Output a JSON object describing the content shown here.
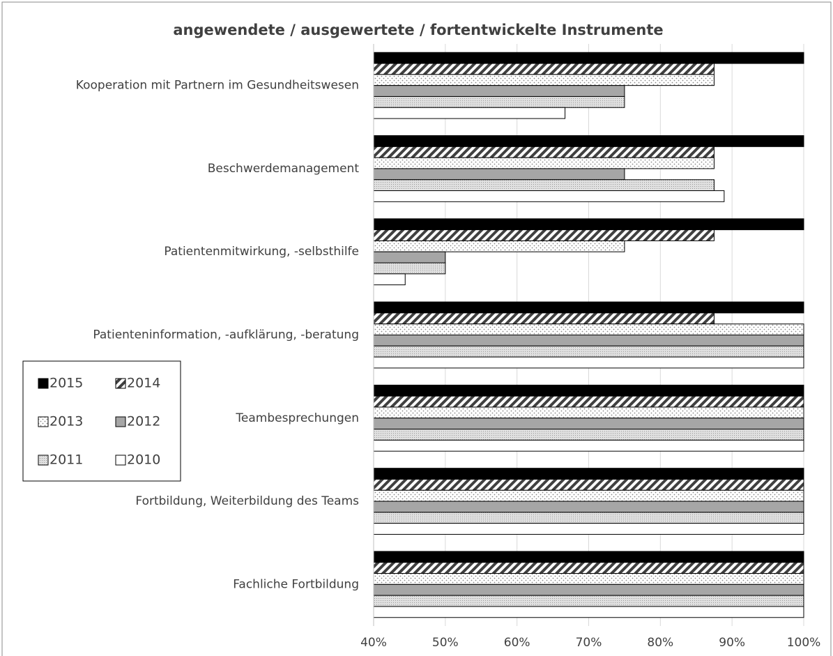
{
  "chart_data": {
    "type": "hbar",
    "title": "angewendete / ausgewertete / fortentwickelte Instrumente",
    "categories": [
      "Kooperation mit Partnern im Gesundheitswesen",
      "Beschwerdemanagement",
      "Patientenmitwirkung, -selbsthilfe",
      "Patienteninformation, -aufklärung, -beratung",
      "Teambesprechungen",
      "Fortbildung, Weiterbildung des Teams",
      "Fachliche Fortbildung"
    ],
    "series": [
      {
        "name": "2015",
        "color": "#000000",
        "pattern": "solid",
        "values": [
          100,
          100,
          100,
          100,
          100,
          100,
          100
        ]
      },
      {
        "name": "2014",
        "color": "#404040",
        "pattern": "diagonal",
        "values": [
          87.5,
          87.5,
          87.5,
          87.5,
          100,
          100,
          100
        ]
      },
      {
        "name": "2013",
        "color": "#a0a0a0",
        "pattern": "dots",
        "values": [
          87.5,
          87.5,
          75,
          100,
          100,
          100,
          100
        ]
      },
      {
        "name": "2012",
        "color": "#a6a6a6",
        "pattern": "solid",
        "values": [
          75,
          75,
          50,
          100,
          100,
          100,
          100
        ]
      },
      {
        "name": "2011",
        "color": "#bfbfbf",
        "pattern": "finedots",
        "values": [
          75,
          87.5,
          50,
          100,
          100,
          100,
          100
        ]
      },
      {
        "name": "2010",
        "color": "#ffffff",
        "pattern": "solid",
        "values": [
          66.7,
          88.9,
          44.4,
          100,
          100,
          100,
          100
        ]
      }
    ],
    "xlim": [
      40,
      100
    ],
    "xticks": [
      {
        "value": 40,
        "label": "40%"
      },
      {
        "value": 50,
        "label": "50%"
      },
      {
        "value": 60,
        "label": "60%"
      },
      {
        "value": 70,
        "label": "70%"
      },
      {
        "value": 80,
        "label": "80%"
      },
      {
        "value": 90,
        "label": "90%"
      },
      {
        "value": 100,
        "label": "100%"
      }
    ],
    "grid": true,
    "legend": "left"
  }
}
